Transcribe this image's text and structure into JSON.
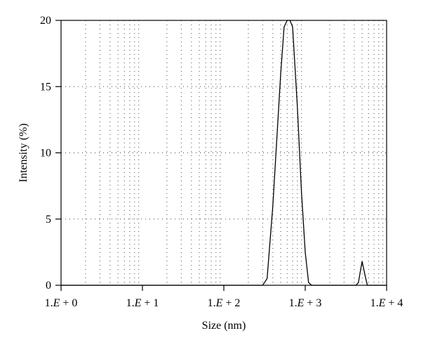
{
  "chart_data": {
    "type": "line",
    "title": "",
    "xlabel": "Size (nm)",
    "ylabel": "Intensity (%)",
    "x_scale": "log",
    "xlim": [
      1,
      10000
    ],
    "ylim": [
      0,
      20
    ],
    "x_ticks": [
      {
        "value": 1,
        "pre": "1.",
        "e": "E",
        "post": " + 0"
      },
      {
        "value": 10,
        "pre": "1.",
        "e": "E",
        "post": " + 1"
      },
      {
        "value": 100,
        "pre": "1.",
        "e": "E",
        "post": " + 2"
      },
      {
        "value": 1000,
        "pre": "1.",
        "e": "E",
        "post": " + 3"
      },
      {
        "value": 10000,
        "pre": "1.",
        "e": "E",
        "post": " + 4"
      }
    ],
    "y_ticks": [
      "0",
      "5",
      "10",
      "15",
      "20"
    ],
    "grid": true,
    "line_color": "#000000",
    "series": [
      {
        "x": [
          1,
          250,
          300,
          340,
          400,
          500,
          550,
          600,
          650,
          700,
          800,
          900,
          1000,
          1100,
          1200,
          1300,
          3000,
          4000,
          4200,
          4500,
          4800,
          5000,
          5500,
          5800,
          6000,
          10000
        ],
        "y": [
          0,
          0,
          0,
          0.5,
          6,
          16,
          19.5,
          20,
          20,
          19.5,
          13.5,
          7,
          2.5,
          0.2,
          0,
          0,
          0,
          0,
          0,
          0.2,
          1.2,
          1.8,
          0.6,
          0,
          0,
          0
        ]
      }
    ]
  }
}
